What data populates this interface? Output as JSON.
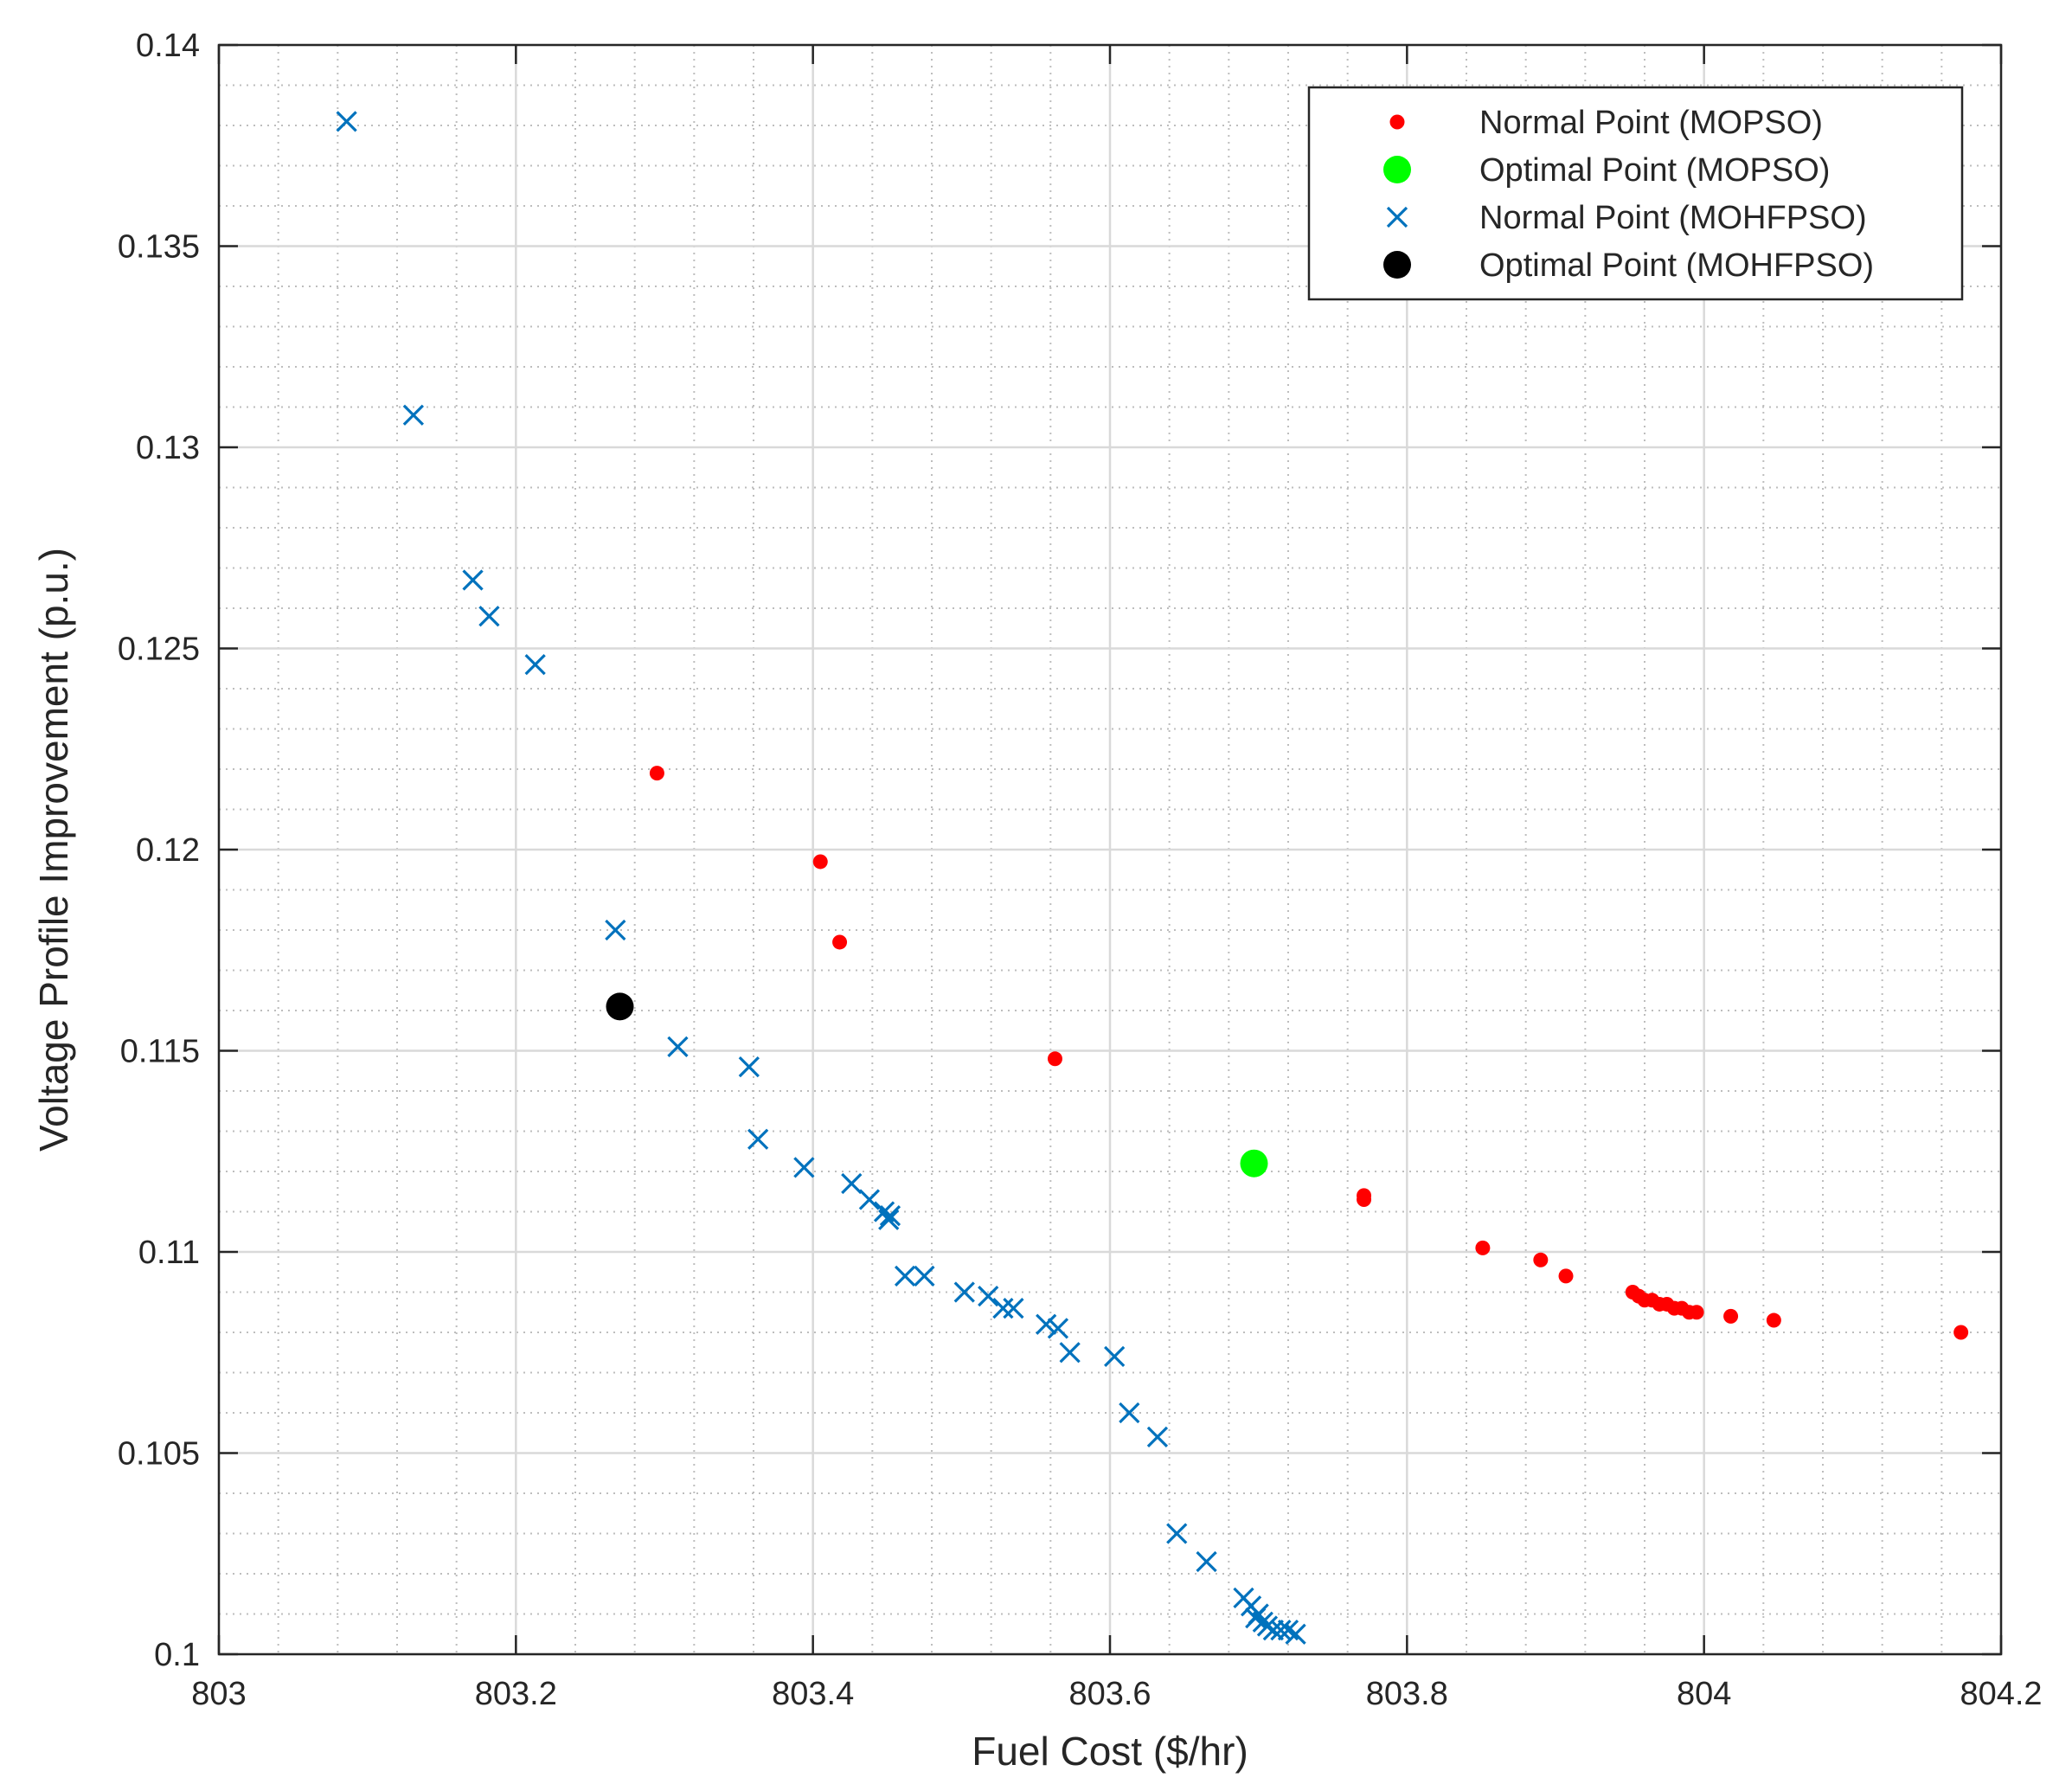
{
  "chart_data": {
    "type": "scatter",
    "title": "",
    "xlabel": "Fuel Cost ($/hr)",
    "ylabel": "Voltage Profile Improvement (p.u.)",
    "xlim": [
      803,
      804.2
    ],
    "ylim": [
      0.1,
      0.14
    ],
    "xticks": [
      803,
      803.2,
      803.4,
      803.6,
      803.8,
      804,
      804.2
    ],
    "xtick_labels": [
      "803",
      "803.2",
      "803.4",
      "803.6",
      "803.8",
      "804",
      "804.2"
    ],
    "yticks": [
      0.1,
      0.105,
      0.11,
      0.115,
      0.12,
      0.125,
      0.13,
      0.135,
      0.14
    ],
    "ytick_labels": [
      "0.1",
      "0.105",
      "0.11",
      "0.115",
      "0.12",
      "0.125",
      "0.13",
      "0.135",
      "0.14"
    ],
    "grid": "major and minor",
    "legend_position": "top-right",
    "series": [
      {
        "name": "Normal Point (MOPSO)",
        "marker": "dot",
        "color": "#ff0000",
        "points": [
          [
            803.295,
            0.1219
          ],
          [
            803.405,
            0.1197
          ],
          [
            803.418,
            0.1177
          ],
          [
            803.563,
            0.1148
          ],
          [
            803.771,
            0.1114
          ],
          [
            803.771,
            0.1113
          ],
          [
            803.851,
            0.1101
          ],
          [
            803.89,
            0.1098
          ],
          [
            803.907,
            0.1094
          ],
          [
            803.952,
            0.109
          ],
          [
            803.956,
            0.1089
          ],
          [
            803.96,
            0.1088
          ],
          [
            803.965,
            0.1088
          ],
          [
            803.97,
            0.1087
          ],
          [
            803.975,
            0.1087
          ],
          [
            803.98,
            0.1086
          ],
          [
            803.985,
            0.1086
          ],
          [
            803.99,
            0.1085
          ],
          [
            803.995,
            0.1085
          ],
          [
            804.018,
            0.1084
          ],
          [
            804.047,
            0.1083
          ],
          [
            804.173,
            0.108
          ]
        ]
      },
      {
        "name": "Optimal Point (MOPSO)",
        "marker": "big-dot",
        "color": "#00ff00",
        "points": [
          [
            803.697,
            0.1122
          ]
        ]
      },
      {
        "name": "Normal Point (MOHFPSO)",
        "marker": "x",
        "color": "#0072bd",
        "points": [
          [
            803.086,
            0.1381
          ],
          [
            803.131,
            0.1308
          ],
          [
            803.171,
            0.1267
          ],
          [
            803.182,
            0.1258
          ],
          [
            803.213,
            0.1246
          ],
          [
            803.267,
            0.118
          ],
          [
            803.309,
            0.1151
          ],
          [
            803.357,
            0.1146
          ],
          [
            803.363,
            0.1128
          ],
          [
            803.394,
            0.1121
          ],
          [
            803.426,
            0.1117
          ],
          [
            803.438,
            0.1113
          ],
          [
            803.448,
            0.111
          ],
          [
            803.452,
            0.1109
          ],
          [
            803.451,
            0.1108
          ],
          [
            803.462,
            0.1094
          ],
          [
            803.475,
            0.1094
          ],
          [
            803.502,
            0.109
          ],
          [
            803.518,
            0.1089
          ],
          [
            803.528,
            0.1086
          ],
          [
            803.535,
            0.1086
          ],
          [
            803.557,
            0.1082
          ],
          [
            803.565,
            0.1081
          ],
          [
            803.573,
            0.1075
          ],
          [
            803.603,
            0.1074
          ],
          [
            803.613,
            0.106
          ],
          [
            803.632,
            0.1054
          ],
          [
            803.645,
            0.103
          ],
          [
            803.665,
            0.1023
          ],
          [
            803.69,
            0.1014
          ],
          [
            803.695,
            0.1012
          ],
          [
            803.7,
            0.101
          ],
          [
            803.703,
            0.1008
          ],
          [
            803.706,
            0.1007
          ],
          [
            803.71,
            0.1006
          ],
          [
            803.715,
            0.1006
          ],
          [
            803.72,
            0.1006
          ],
          [
            803.725,
            0.1005
          ],
          [
            803.698,
            0.1009
          ]
        ]
      },
      {
        "name": "Optimal Point (MOHFPSO)",
        "marker": "big-dot",
        "color": "#000000",
        "points": [
          [
            803.27,
            0.1161
          ]
        ]
      }
    ]
  }
}
